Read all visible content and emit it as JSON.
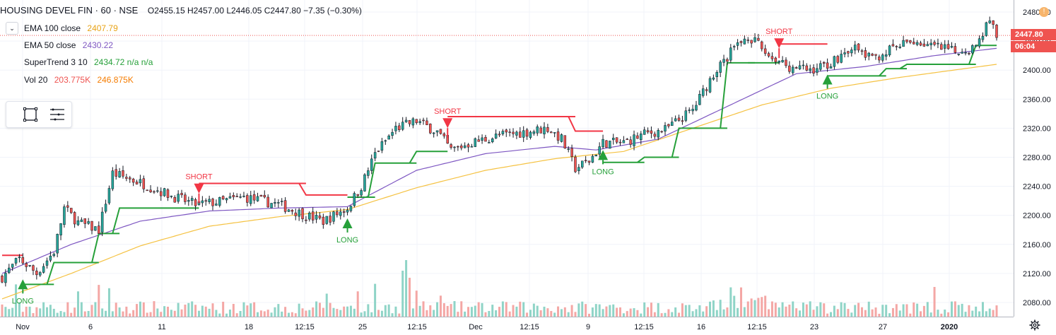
{
  "header": {
    "symbol": "HOUSING DEVEL FIN · 60 · NSE",
    "ohlc": "O2455.15 H2457.00 L2446.05 C2447.80 −7.35 (−0.30%)"
  },
  "indicators": [
    {
      "label": "EMA 100 close",
      "value": "2407.79",
      "color": "#e8a317"
    },
    {
      "label": "EMA 50 close",
      "value": "2430.22",
      "color": "#7e57c2"
    },
    {
      "label": "SuperTrend 3 10",
      "value": "2434.72 n/a n/a",
      "color": "#26a03a"
    },
    {
      "label": "Vol 20",
      "value": "203.775K",
      "value2": "246.875K",
      "color": "#ef5350",
      "color2": "#f57c00"
    }
  ],
  "price_tags": {
    "last": "2447.80",
    "countdown": "06:04",
    "last_color": "#ef5350",
    "countdown_color": "#ef5350"
  },
  "colors": {
    "up": "#26a69a",
    "down": "#ef5350",
    "supertrend_up": "#26a03a",
    "supertrend_down": "#f23645",
    "ema50": "#7e57c2",
    "ema100": "#f5c242",
    "vol_up": "#8fd4c7",
    "vol_down": "#f4a7a5"
  },
  "icons": [
    "chevron-down-icon",
    "rectangle-tool-icon",
    "menu-lines-icon",
    "alert-icon",
    "gear-icon"
  ],
  "chart_data": {
    "type": "candlestick",
    "title": "",
    "ylim": [
      2060,
      2490
    ],
    "y_ticks": [
      2080,
      2120,
      2160,
      2200,
      2240,
      2280,
      2320,
      2360,
      2400,
      2440,
      2480
    ],
    "x_tick_labels": [
      "Nov",
      "6",
      "11",
      "18",
      "12:15",
      "25",
      "12:15",
      "Dec",
      "12:15",
      "9",
      "12:15",
      "16",
      "12:15",
      "23",
      "27",
      "2020"
    ],
    "signals": [
      {
        "label": "LONG",
        "bar": 6,
        "price": 2106
      },
      {
        "label": "SHORT",
        "bar": 57,
        "price": 2236
      },
      {
        "label": "LONG",
        "bar": 100,
        "price": 2190
      },
      {
        "label": "SHORT",
        "bar": 129,
        "price": 2326
      },
      {
        "label": "LONG",
        "bar": 174,
        "price": 2284
      },
      {
        "label": "SHORT",
        "bar": 225,
        "price": 2436
      },
      {
        "label": "LONG",
        "bar": 239,
        "price": 2388
      }
    ],
    "anchors": [
      [
        0,
        2115
      ],
      [
        5,
        2140
      ],
      [
        10,
        2120
      ],
      [
        15,
        2150
      ],
      [
        18,
        2210
      ],
      [
        22,
        2190
      ],
      [
        28,
        2180
      ],
      [
        32,
        2258
      ],
      [
        40,
        2245
      ],
      [
        50,
        2225
      ],
      [
        56,
        2215
      ],
      [
        62,
        2218
      ],
      [
        70,
        2225
      ],
      [
        80,
        2215
      ],
      [
        88,
        2200
      ],
      [
        93,
        2192
      ],
      [
        100,
        2210
      ],
      [
        104,
        2240
      ],
      [
        108,
        2285
      ],
      [
        114,
        2320
      ],
      [
        120,
        2330
      ],
      [
        126,
        2315
      ],
      [
        130,
        2290
      ],
      [
        136,
        2300
      ],
      [
        144,
        2310
      ],
      [
        152,
        2315
      ],
      [
        158,
        2320
      ],
      [
        162,
        2305
      ],
      [
        166,
        2265
      ],
      [
        170,
        2275
      ],
      [
        174,
        2300
      ],
      [
        180,
        2300
      ],
      [
        186,
        2312
      ],
      [
        192,
        2318
      ],
      [
        200,
        2345
      ],
      [
        206,
        2395
      ],
      [
        212,
        2430
      ],
      [
        216,
        2448
      ],
      [
        222,
        2420
      ],
      [
        228,
        2405
      ],
      [
        234,
        2400
      ],
      [
        240,
        2410
      ],
      [
        246,
        2432
      ],
      [
        252,
        2415
      ],
      [
        258,
        2430
      ],
      [
        264,
        2440
      ],
      [
        270,
        2432
      ],
      [
        276,
        2425
      ],
      [
        282,
        2432
      ],
      [
        286,
        2472
      ],
      [
        288,
        2448
      ]
    ],
    "ema50_anchors": [
      [
        0,
        2120
      ],
      [
        20,
        2160
      ],
      [
        40,
        2192
      ],
      [
        60,
        2206
      ],
      [
        80,
        2210
      ],
      [
        100,
        2212
      ],
      [
        120,
        2262
      ],
      [
        140,
        2285
      ],
      [
        160,
        2295
      ],
      [
        172,
        2290
      ],
      [
        190,
        2305
      ],
      [
        210,
        2350
      ],
      [
        230,
        2395
      ],
      [
        250,
        2405
      ],
      [
        270,
        2420
      ],
      [
        288,
        2430
      ]
    ],
    "ema100_anchors": [
      [
        0,
        2085
      ],
      [
        20,
        2120
      ],
      [
        40,
        2158
      ],
      [
        60,
        2185
      ],
      [
        80,
        2198
      ],
      [
        100,
        2208
      ],
      [
        120,
        2238
      ],
      [
        140,
        2262
      ],
      [
        160,
        2278
      ],
      [
        180,
        2288
      ],
      [
        200,
        2320
      ],
      [
        220,
        2352
      ],
      [
        240,
        2375
      ],
      [
        260,
        2390
      ],
      [
        288,
        2408
      ]
    ],
    "supertrend": [
      {
        "dir": "down",
        "start": 0,
        "end": 6,
        "level": 2145
      },
      {
        "dir": "up",
        "start": 6,
        "end": 15,
        "level": 2105
      },
      {
        "dir": "up",
        "start": 15,
        "end": 28,
        "level": 2135
      },
      {
        "dir": "up",
        "start": 28,
        "end": 34,
        "level": 2175
      },
      {
        "dir": "up",
        "start": 34,
        "end": 57,
        "level": 2210
      },
      {
        "dir": "down",
        "start": 57,
        "end": 88,
        "level": 2244
      },
      {
        "dir": "down",
        "start": 88,
        "end": 100,
        "level": 2228
      },
      {
        "dir": "up",
        "start": 100,
        "end": 108,
        "level": 2225
      },
      {
        "dir": "up",
        "start": 108,
        "end": 120,
        "level": 2272
      },
      {
        "dir": "up",
        "start": 120,
        "end": 129,
        "level": 2288
      },
      {
        "dir": "down",
        "start": 129,
        "end": 166,
        "level": 2336
      },
      {
        "dir": "down",
        "start": 166,
        "end": 174,
        "level": 2316
      },
      {
        "dir": "up",
        "start": 174,
        "end": 186,
        "level": 2273
      },
      {
        "dir": "up",
        "start": 186,
        "end": 196,
        "level": 2280
      },
      {
        "dir": "up",
        "start": 196,
        "end": 210,
        "level": 2320
      },
      {
        "dir": "up",
        "start": 210,
        "end": 218,
        "level": 2410
      },
      {
        "dir": "up",
        "start": 218,
        "end": 225,
        "level": 2410
      },
      {
        "dir": "down",
        "start": 225,
        "end": 239,
        "level": 2436
      },
      {
        "dir": "up",
        "start": 239,
        "end": 256,
        "level": 2392
      },
      {
        "dir": "up",
        "start": 256,
        "end": 262,
        "level": 2402
      },
      {
        "dir": "up",
        "start": 262,
        "end": 282,
        "level": 2408
      },
      {
        "dir": "up",
        "start": 282,
        "end": 288,
        "level": 2434
      }
    ]
  }
}
